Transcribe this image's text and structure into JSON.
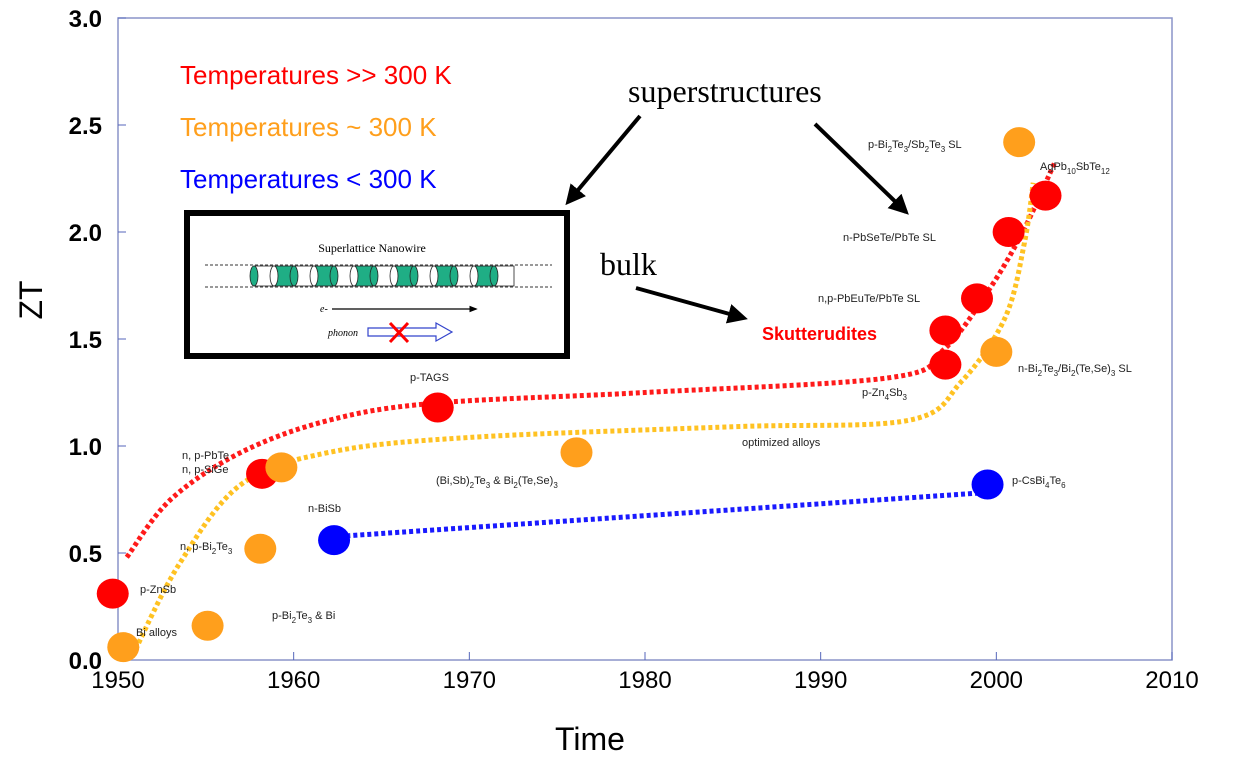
{
  "chart_data": {
    "type": "scatter",
    "x_label": "Time",
    "y_label": "ZT",
    "xlim": [
      1950,
      2010
    ],
    "ylim": [
      0,
      3
    ],
    "xticks": [
      1950,
      1960,
      1970,
      1980,
      1990,
      2000,
      2010
    ],
    "yticks": [
      {
        "value": 0,
        "label": "0.0"
      },
      0.5,
      {
        "value": 1,
        "label": "1.0"
      },
      1.5,
      {
        "value": 2,
        "label": "2.0"
      },
      2.5,
      {
        "value": 3,
        "label": "3.0"
      }
    ],
    "grid": false,
    "series": [
      {
        "name": "Temperatures >> 300 K",
        "color": "#ff0000",
        "x": [
          1949.7,
          1958.2,
          1968.2,
          1997.1,
          1997.1,
          1998.9,
          2000.7,
          2002.8
        ],
        "values": [
          0.31,
          0.87,
          1.18,
          1.54,
          1.38,
          1.69,
          2.0,
          2.17
        ]
      },
      {
        "name": "Temperatures ~ 300 K",
        "color": "#ff9f1c",
        "x": [
          1950.3,
          1955.1,
          1958.1,
          1959.3,
          1976.1,
          2000.0,
          2001.3
        ],
        "values": [
          0.06,
          0.16,
          0.52,
          0.9,
          0.97,
          1.44,
          2.42
        ]
      },
      {
        "name": "Temperatures < 300 K",
        "color": "#0000ff",
        "x": [
          1962.3,
          1999.5
        ],
        "values": [
          0.56,
          0.82
        ]
      }
    ],
    "trend_lines": [
      {
        "color": "#ff1a1a",
        "x": [
          1950.5,
          1953,
          1957,
          1962,
          1968,
          1980,
          1994,
          1997,
          1999.5,
          2001.5,
          2003.3
        ],
        "values": [
          0.48,
          0.75,
          0.97,
          1.12,
          1.2,
          1.25,
          1.32,
          1.45,
          1.72,
          2.0,
          2.32
        ]
      },
      {
        "color": "#ffc222",
        "x": [
          1951,
          1953.5,
          1957,
          1962,
          1970,
          1985,
          1995,
          1998,
          2000.5,
          2001.6,
          2002.1
        ],
        "values": [
          0.05,
          0.45,
          0.82,
          0.97,
          1.04,
          1.09,
          1.12,
          1.3,
          1.6,
          1.95,
          2.23
        ]
      },
      {
        "color": "#1a1aff",
        "x": [
          1963,
          1999
        ],
        "values": [
          0.58,
          0.78
        ]
      }
    ],
    "annotations": [
      "p-Bi2Te3/Sb2Te3 SL",
      "AgPb10SbTe12",
      "n-PbSeTe/PbTe SL",
      "n,p-PbEuTe/PbTe SL",
      "n-Bi2Te3/Bi2(Te,Se)3 SL",
      "p-Zn4Sb3",
      "optimized alloys",
      "p-CsBi4Te6",
      "p-TAGS",
      "n, p-PbTe",
      "n, p-SiGe",
      "(Bi,Sb)2Te3 & Bi2(Te,Se)3",
      "n-BiSb",
      "n, p-Bi2Te3",
      "p-ZnSb",
      "p-Bi2Te3 & Bi",
      "Bi alloys"
    ],
    "callouts": {
      "superstructures": "superstructures",
      "bulk": "bulk",
      "skutterudites": "Skutterudites"
    },
    "inset": {
      "title": "Superlattice Nanowire",
      "electron": "e-",
      "phonon": "phonon"
    }
  }
}
